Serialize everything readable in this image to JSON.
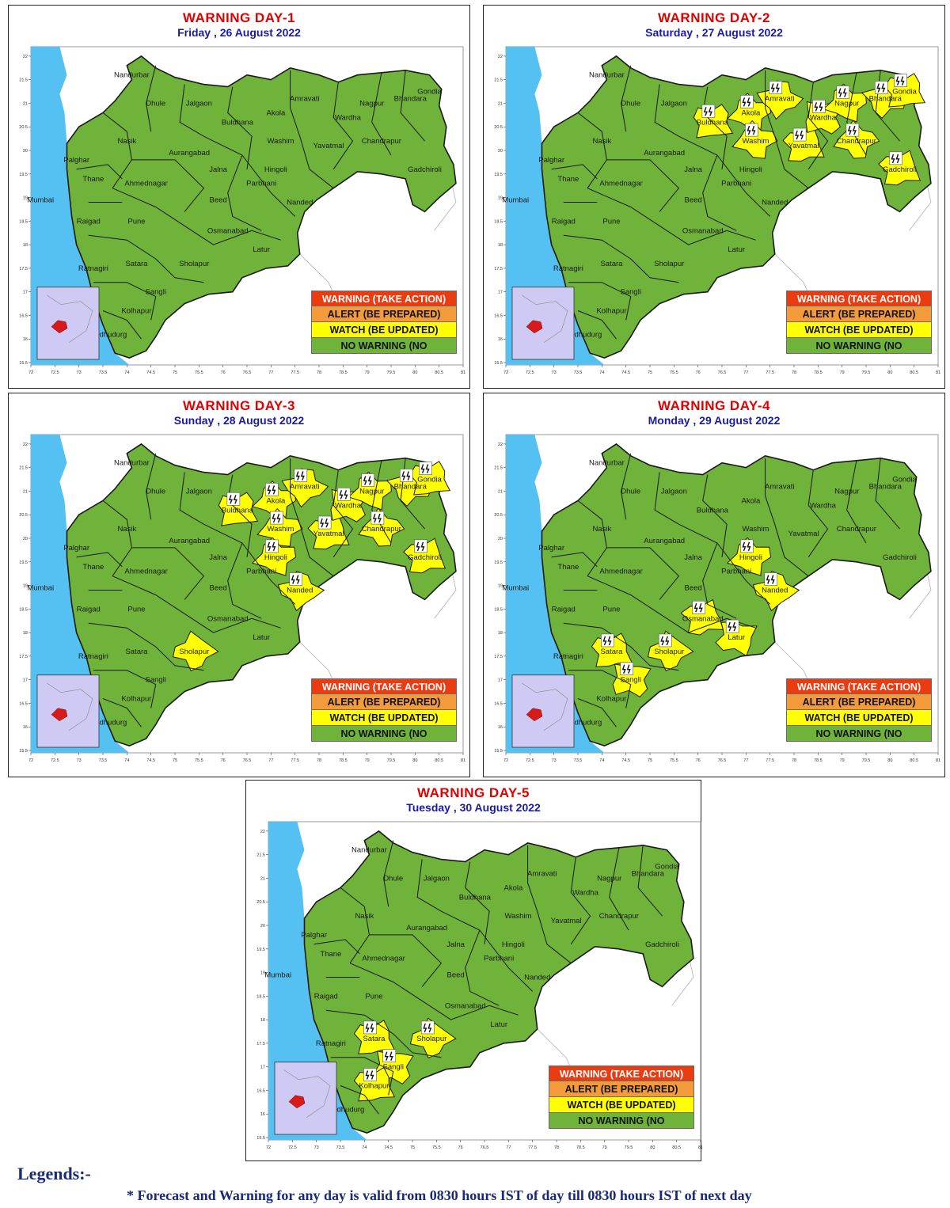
{
  "legend_colors": {
    "warning": "#ea3c10",
    "alert": "#f39a3a",
    "watch": "#ffff00",
    "no_warning": "#6fb33a",
    "sea": "#55c1f2",
    "inset_bg": "#cfcaf3"
  },
  "legend_labels": {
    "warning": "WARNING (TAKE ACTION)",
    "alert": "ALERT (BE PREPARED)",
    "watch": "WATCH (BE UPDATED)",
    "no_warning": "NO WARNING (NO"
  },
  "axis_ticks": {
    "lon": [
      "72",
      "72.5",
      "73",
      "73.5",
      "74",
      "74.5",
      "75",
      "75.5",
      "76",
      "76.5",
      "77",
      "77.5",
      "78",
      "78.5",
      "79",
      "79.5",
      "80",
      "80.5",
      "81"
    ],
    "lat": [
      "22",
      "21.5",
      "21",
      "20.5",
      "20",
      "19.5",
      "19",
      "18.5",
      "18",
      "17.5",
      "17",
      "16.5",
      "16",
      "15.5"
    ]
  },
  "district_labels": [
    "Nandurbar",
    "Dhule",
    "Jalgaon",
    "Amravati",
    "Nagpur",
    "Bhandara",
    "Gondia",
    "Nasik",
    "Aurangabad",
    "Buldhana",
    "Akola",
    "Washim",
    "Wardha",
    "Yavatmal",
    "Chandrapur",
    "Gadchiroli",
    "Palghar",
    "Thane",
    "Mumbai",
    "Ahmednagar",
    "Jalna",
    "Parbhani",
    "Hingoli",
    "Nanded",
    "Beed",
    "Raigad",
    "Pune",
    "Osmanabad",
    "Latur",
    "Satara",
    "Sholapur",
    "Ratnagiri",
    "Sangli",
    "Kolhapur",
    "Sindhudurg"
  ],
  "panels": [
    {
      "title": "WARNING  DAY-1",
      "date": "Friday ,  26 August 2022",
      "watch_districts": [],
      "thunder_districts": []
    },
    {
      "title": "WARNING  DAY-2",
      "date": "Saturday ,  27 August 2022",
      "watch_districts": [
        "Buldhana",
        "Akola",
        "Washim",
        "Amravati",
        "Yavatmal",
        "Wardha",
        "Nagpur",
        "Bhandara",
        "Gondia",
        "Chandrapur",
        "Gadchiroli"
      ],
      "thunder_districts": [
        "Buldhana",
        "Akola",
        "Washim",
        "Amravati",
        "Yavatmal",
        "Wardha",
        "Nagpur",
        "Bhandara",
        "Gondia",
        "Chandrapur",
        "Gadchiroli"
      ]
    },
    {
      "title": "WARNING  DAY-3",
      "date": "Sunday ,  28 August 2022",
      "watch_districts": [
        "Buldhana",
        "Akola",
        "Washim",
        "Hingoli",
        "Nanded",
        "Amravati",
        "Yavatmal",
        "Wardha",
        "Nagpur",
        "Bhandara",
        "Gondia",
        "Chandrapur",
        "Gadchiroli",
        "Sholapur"
      ],
      "thunder_districts": [
        "Buldhana",
        "Akola",
        "Washim",
        "Hingoli",
        "Nanded",
        "Amravati",
        "Yavatmal",
        "Wardha",
        "Nagpur",
        "Bhandara",
        "Gondia",
        "Chandrapur",
        "Gadchiroli"
      ]
    },
    {
      "title": "WARNING  DAY-4",
      "date": "Monday ,  29 August 2022",
      "watch_districts": [
        "Hingoli",
        "Nanded",
        "Latur",
        "Osmanabad",
        "Sholapur",
        "Satara",
        "Sangli"
      ],
      "thunder_districts": [
        "Hingoli",
        "Nanded",
        "Latur",
        "Osmanabad",
        "Sholapur",
        "Satara",
        "Sangli"
      ]
    },
    {
      "title": "WARNING  DAY-5",
      "date": "Tuesday ,  30 August 2022",
      "watch_districts": [
        "Satara",
        "Sholapur",
        "Sangli",
        "Kolhapur"
      ],
      "thunder_districts": [
        "Satara",
        "Sholapur",
        "Sangli",
        "Kolhapur"
      ]
    }
  ],
  "footer": {
    "legends_heading": "Legends:-",
    "note": "* Forecast and Warning for any day is valid from 0830 hours IST of day till 0830 hours IST of next day"
  }
}
